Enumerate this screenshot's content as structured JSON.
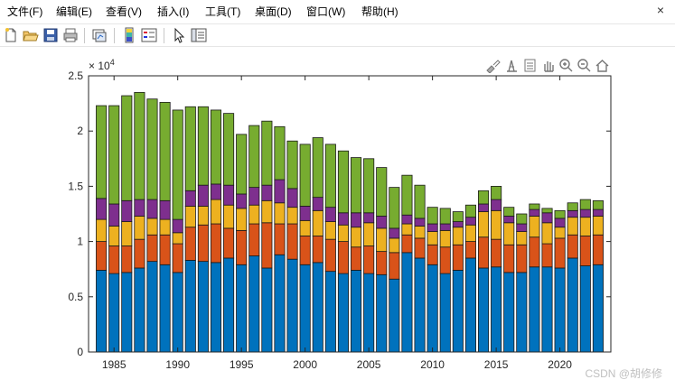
{
  "menubar": {
    "items": [
      "文件(F)",
      "编辑(E)",
      "查看(V)",
      "插入(I)",
      "工具(T)",
      "桌面(D)",
      "窗口(W)",
      "帮助(H)"
    ],
    "close_glyph": "×"
  },
  "toolbar": {
    "buttons": [
      "new-file-icon",
      "open-folder-icon",
      "save-icon",
      "print-icon",
      "link-plot-icon",
      "insert-colorbar-icon",
      "insert-legend-icon",
      "pointer-icon",
      "property-inspector-icon"
    ]
  },
  "axes_toolbar": {
    "buttons": [
      "brush-icon",
      "data-tips-icon",
      "rotate-icon",
      "pan-icon",
      "zoom-in-icon",
      "zoom-out-icon",
      "home-icon"
    ]
  },
  "watermark": "CSDN @胡修修",
  "chart_data": {
    "type": "bar",
    "stacked": true,
    "exponent_label": "× 10^4",
    "x": [
      1984,
      1985,
      1986,
      1987,
      1988,
      1989,
      1990,
      1991,
      1992,
      1993,
      1994,
      1995,
      1996,
      1997,
      1998,
      1999,
      2000,
      2001,
      2002,
      2003,
      2004,
      2005,
      2006,
      2007,
      2008,
      2009,
      2010,
      2011,
      2012,
      2013,
      2014,
      2015,
      2016,
      2017,
      2018,
      2019,
      2020,
      2021,
      2022,
      2023
    ],
    "xticks": [
      1985,
      1990,
      1995,
      2000,
      2005,
      2010,
      2015,
      2020
    ],
    "xlim": [
      1983,
      2024
    ],
    "ylim": [
      0,
      2.5
    ],
    "yticks": [
      0,
      0.5,
      1,
      1.5,
      2,
      2.5
    ],
    "ytick_labels": [
      "0",
      "0.5",
      "1",
      "1.5",
      "2",
      "2.5"
    ],
    "grid": false,
    "series": [
      {
        "color": "#0072BD",
        "values": [
          0.74,
          0.71,
          0.72,
          0.76,
          0.82,
          0.79,
          0.72,
          0.83,
          0.82,
          0.81,
          0.85,
          0.79,
          0.87,
          0.76,
          0.88,
          0.84,
          0.79,
          0.81,
          0.73,
          0.71,
          0.74,
          0.71,
          0.7,
          0.66,
          0.9,
          0.85,
          0.79,
          0.71,
          0.74,
          0.85,
          0.76,
          0.77,
          0.72,
          0.72,
          0.77,
          0.77,
          0.76,
          0.85,
          0.78,
          0.79
        ]
      },
      {
        "color": "#D95319",
        "values": [
          0.26,
          0.25,
          0.24,
          0.26,
          0.24,
          0.27,
          0.26,
          0.3,
          0.33,
          0.35,
          0.27,
          0.31,
          0.29,
          0.41,
          0.28,
          0.32,
          0.26,
          0.24,
          0.29,
          0.29,
          0.21,
          0.25,
          0.21,
          0.24,
          0.16,
          0.18,
          0.18,
          0.24,
          0.23,
          0.15,
          0.28,
          0.25,
          0.25,
          0.25,
          0.27,
          0.21,
          0.27,
          0.21,
          0.27,
          0.27
        ]
      },
      {
        "color": "#EDB120",
        "values": [
          0.2,
          0.18,
          0.22,
          0.21,
          0.15,
          0.14,
          0.1,
          0.19,
          0.17,
          0.22,
          0.21,
          0.2,
          0.17,
          0.2,
          0.19,
          0.15,
          0.14,
          0.23,
          0.16,
          0.15,
          0.18,
          0.21,
          0.21,
          0.13,
          0.1,
          0.11,
          0.12,
          0.15,
          0.16,
          0.15,
          0.23,
          0.26,
          0.2,
          0.12,
          0.19,
          0.19,
          0.1,
          0.16,
          0.17,
          0.17
        ]
      },
      {
        "color": "#7E2F8E",
        "values": [
          0.19,
          0.2,
          0.19,
          0.15,
          0.17,
          0.17,
          0.12,
          0.14,
          0.19,
          0.14,
          0.18,
          0.13,
          0.16,
          0.14,
          0.21,
          0.17,
          0.13,
          0.12,
          0.13,
          0.11,
          0.13,
          0.09,
          0.11,
          0.09,
          0.08,
          0.07,
          0.07,
          0.06,
          0.05,
          0.07,
          0.07,
          0.1,
          0.06,
          0.07,
          0.06,
          0.09,
          0.08,
          0.06,
          0.07,
          0.06
        ]
      },
      {
        "color": "#77AC30",
        "values": [
          0.84,
          0.89,
          0.95,
          0.97,
          0.91,
          0.89,
          0.99,
          0.76,
          0.71,
          0.67,
          0.65,
          0.54,
          0.56,
          0.58,
          0.48,
          0.43,
          0.56,
          0.54,
          0.57,
          0.56,
          0.5,
          0.49,
          0.44,
          0.37,
          0.36,
          0.3,
          0.15,
          0.14,
          0.09,
          0.11,
          0.12,
          0.12,
          0.08,
          0.09,
          0.05,
          0.04,
          0.07,
          0.07,
          0.09,
          0.08
        ]
      }
    ]
  }
}
